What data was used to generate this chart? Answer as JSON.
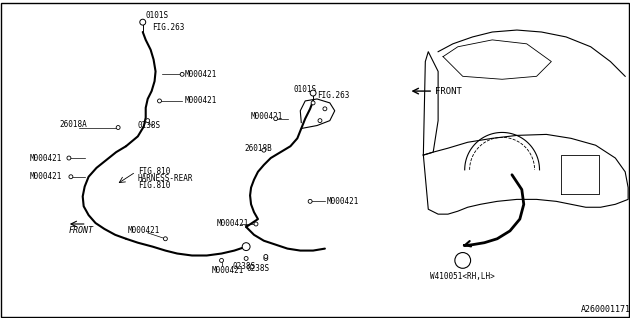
{
  "title": "",
  "bg_color": "#ffffff",
  "line_color": "#000000",
  "text_color": "#000000",
  "border_color": "#000000",
  "fig_number": "A260001171",
  "labels": {
    "0101S_top": "0101S",
    "FIG263_top": "FIG.263",
    "M000421_top_right": "M000421",
    "26018A": "26018A",
    "M000421_mid_right": "M000421",
    "0238S_left": "0238S",
    "M000421_left1": "M000421",
    "M000421_left2": "M000421",
    "FIG810": "FIG.810",
    "HARNESS_REAR": "HARNESS-REAR",
    "FIG810_2": "FIG.810",
    "FRONT_bottom": "FRONT",
    "M000421_bot1": "M000421",
    "M000421_bot2": "M000421",
    "26018B": "26018B",
    "0238S_right": "0238S",
    "M000421_mid2": "M000421",
    "0101S_right": "0101S",
    "FIG263_right": "FIG.263",
    "M000421_right": "M000421",
    "FRONT_top": "FRONT",
    "W410051": "W410051<RH,LH>"
  }
}
